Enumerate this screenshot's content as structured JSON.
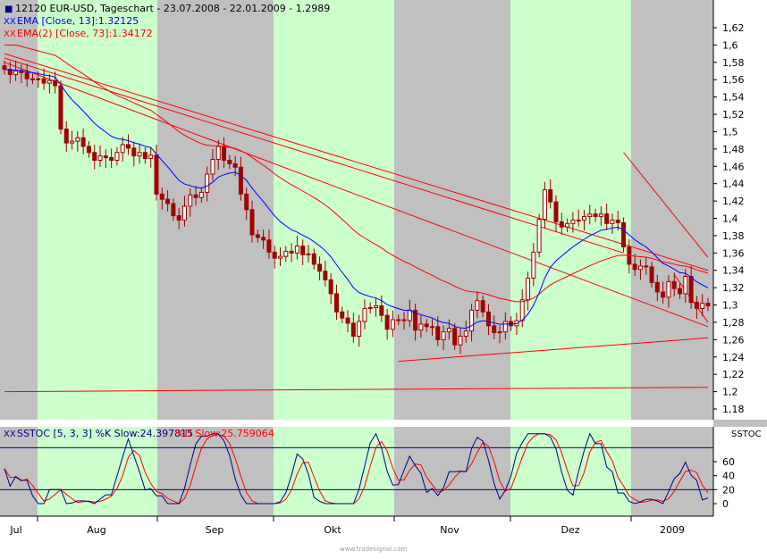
{
  "header": {
    "symbol_marker": "■",
    "title_line": "12120  EUR-USD, Tageschart - 23.07.2008 - 22.01.2009 - 1.2989",
    "ema13": "EMA [Close, 13]:1.32125",
    "ema73": "EMA(2) [Close, 73]:1.34172"
  },
  "sub_header": {
    "stoch": "SSTOC [5, 3, 3] %K Slow:24.397815",
    "stoch_d": "%D Slow:25.759064",
    "panel_tag": "SSTOC"
  },
  "watermark": "www.tradesignal.com",
  "colors": {
    "background": "#c0c0c0",
    "green_band": "#ccffcc",
    "gray_band": "#c0c0c0",
    "candle": "#a00000",
    "ema13": "#0000ff",
    "ema73": "#ff0000",
    "trendline": "#ff0000",
    "stoch_k": "#000080",
    "stoch_d": "#ff0000",
    "level_line": "#000080"
  },
  "chart_data": [
    {
      "type": "candlestick",
      "title": "EUR-USD, Tageschart",
      "x_labels": [
        "Jul",
        "Aug",
        "Sep",
        "Okt",
        "Nov",
        "Dez",
        "2009"
      ],
      "y_ticks": [
        "1,18",
        "1,2",
        "1,22",
        "1,24",
        "1,26",
        "1,28",
        "1,3",
        "1,32",
        "1,34",
        "1,36",
        "1,38",
        "1,4",
        "1,42",
        "1,44",
        "1,46",
        "1,48",
        "1,5",
        "1,52",
        "1,54",
        "1,56",
        "1,58",
        "1,6",
        "1,62"
      ],
      "ylim": [
        1.16,
        1.64
      ],
      "close_series": [
        1.572,
        1.566,
        1.57,
        1.568,
        1.561,
        1.561,
        1.561,
        1.556,
        1.559,
        1.553,
        1.503,
        1.487,
        1.489,
        1.493,
        1.483,
        1.476,
        1.467,
        1.472,
        1.47,
        1.467,
        1.476,
        1.485,
        1.481,
        1.472,
        1.476,
        1.469,
        1.473,
        1.428,
        1.422,
        1.417,
        1.403,
        1.398,
        1.414,
        1.427,
        1.424,
        1.43,
        1.451,
        1.468,
        1.483,
        1.467,
        1.463,
        1.459,
        1.428,
        1.41,
        1.381,
        1.378,
        1.375,
        1.361,
        1.354,
        1.356,
        1.362,
        1.36,
        1.368,
        1.358,
        1.359,
        1.347,
        1.339,
        1.329,
        1.313,
        1.292,
        1.285,
        1.279,
        1.264,
        1.281,
        1.296,
        1.297,
        1.299,
        1.288,
        1.272,
        1.283,
        1.283,
        1.282,
        1.294,
        1.271,
        1.278,
        1.275,
        1.275,
        1.26,
        1.269,
        1.273,
        1.254,
        1.264,
        1.27,
        1.294,
        1.305,
        1.292,
        1.276,
        1.268,
        1.269,
        1.281,
        1.276,
        1.282,
        1.306,
        1.331,
        1.361,
        1.399,
        1.433,
        1.419,
        1.396,
        1.39,
        1.394,
        1.398,
        1.398,
        1.402,
        1.405,
        1.402,
        1.405,
        1.394,
        1.398,
        1.395,
        1.367,
        1.347,
        1.341,
        1.345,
        1.344,
        1.326,
        1.315,
        1.309,
        1.327,
        1.319,
        1.313,
        1.333,
        1.303,
        1.296,
        1.302,
        1.299
      ],
      "ema": [
        {
          "name": "EMA [Close, 13]",
          "last": 1.32125
        },
        {
          "name": "EMA(2) [Close, 73]",
          "last": 1.34172
        }
      ],
      "trendlines": [
        {
          "from": [
            "2008-07-23",
            1.59
          ],
          "to": [
            "2009-01-22",
            1.34
          ]
        },
        {
          "from": [
            "2008-10-22",
            1.235
          ],
          "to": [
            "2009-01-22",
            1.262
          ]
        },
        {
          "from": [
            "2008-07-23",
            1.2
          ],
          "to": [
            "2009-01-22",
            1.205
          ]
        },
        {
          "from": [
            "2008-12-18",
            1.476
          ],
          "to": [
            "2009-01-22",
            1.355
          ]
        },
        {
          "from": [
            "2009-01-02",
            1.335
          ],
          "to": [
            "2009-01-22",
            1.28
          ]
        }
      ],
      "bands": [
        "green",
        "gray",
        "green",
        "gray",
        "green",
        "gray"
      ]
    },
    {
      "type": "line",
      "title": "SSTOC [5, 3, 3]",
      "y_ticks": [
        "0",
        "20",
        "40",
        "60"
      ],
      "ylim": [
        -10,
        100
      ],
      "levels": [
        20,
        80
      ],
      "series": [
        {
          "name": "%K Slow",
          "last": 24.397815
        },
        {
          "name": "%D Slow",
          "last": 25.759064
        }
      ]
    }
  ]
}
